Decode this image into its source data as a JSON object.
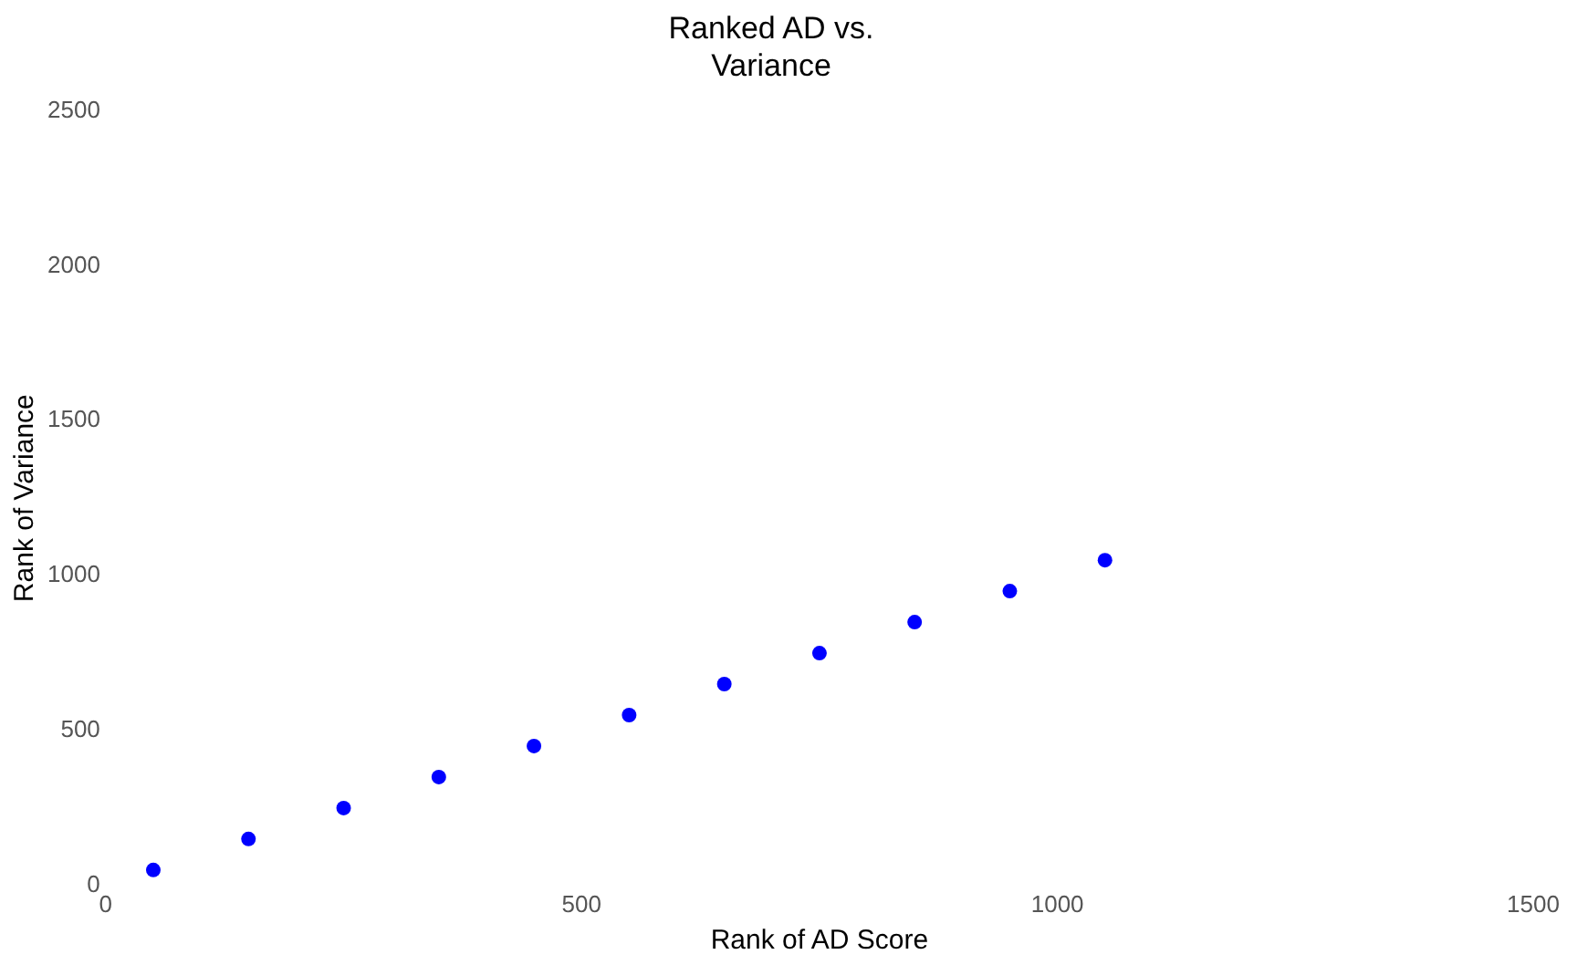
{
  "chart_data": {
    "type": "scatter",
    "title": "Ranked AD vs.\nVariance",
    "xlabel": "Rank of AD Score",
    "ylabel": "Rank of Variance",
    "x": [
      50,
      150,
      250,
      350,
      450,
      550,
      650,
      750,
      850,
      950,
      1050
    ],
    "series": [
      {
        "color": "#0000ff",
        "values": [
          50,
          150,
          250,
          350,
          450,
          550,
          650,
          750,
          850,
          950,
          1050
        ]
      }
    ],
    "xlim": [
      0,
      1500
    ],
    "xticks": [
      0,
      500,
      1000,
      1500
    ],
    "ylim": [
      0,
      2500
    ],
    "yticks": [
      0,
      500,
      1000,
      1500,
      2000,
      2500
    ],
    "grid": false,
    "legend": false,
    "marker": "circle"
  }
}
